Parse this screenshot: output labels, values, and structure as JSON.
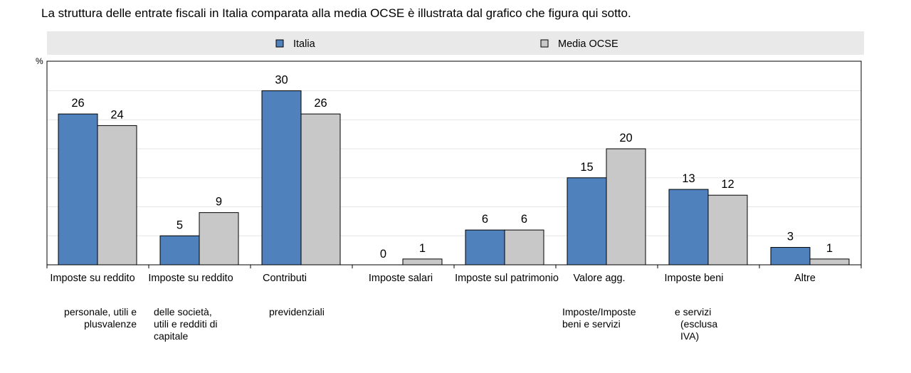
{
  "intro_text": "La struttura delle entrate fiscali in Italia comparata alla media OCSE è illustrata dal grafico che figura qui sotto.",
  "chart_data": {
    "type": "bar",
    "ylabel": "%",
    "ylim": [
      0,
      32
    ],
    "grid": true,
    "legend_position": "top",
    "categories": [
      "Imposte su reddito",
      "Imposte su reddito",
      "Contributi",
      "Imposte salari",
      "Imposte sul patrimonio",
      "Valore agg.",
      "Imposte beni",
      "Altre"
    ],
    "category_sublabels": [
      [
        "personale, utili e",
        "plusvalenze"
      ],
      [
        "delle società,",
        "utili e redditi di",
        "capitale"
      ],
      [
        "previdenziali"
      ],
      [],
      [],
      [
        "Imposte/Imposte",
        "beni e servizi"
      ],
      [
        "e servizi",
        "(esclusa",
        "IVA)"
      ],
      []
    ],
    "series": [
      {
        "name": "Italia",
        "color": "#4f81bd",
        "values": [
          26,
          5,
          30,
          0,
          6,
          15,
          13,
          3
        ]
      },
      {
        "name": "Media OCSE",
        "color": "#c8c8c8",
        "values": [
          24,
          9,
          26,
          1,
          6,
          20,
          12,
          1
        ]
      }
    ]
  }
}
